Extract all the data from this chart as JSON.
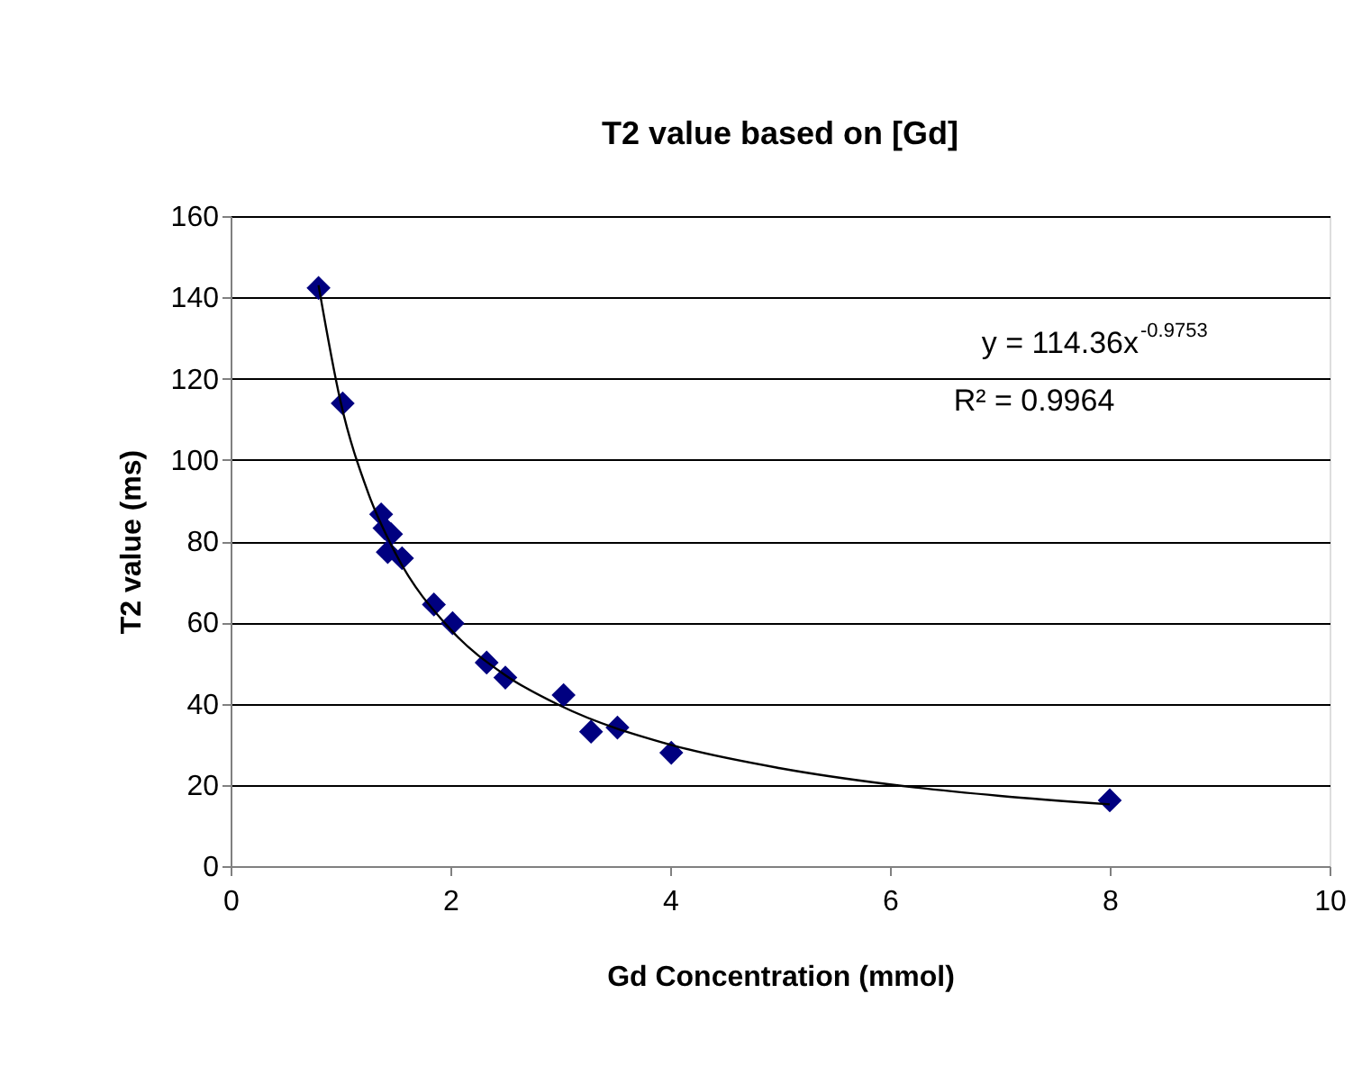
{
  "chart_data": {
    "type": "scatter",
    "title": "T2 value based on [Gd]",
    "xlabel": "Gd Concentration (mmol)",
    "ylabel": "T2 value (ms)",
    "xlim": [
      0,
      10
    ],
    "xticks": [
      0,
      2,
      4,
      6,
      8,
      10
    ],
    "ylim": [
      0,
      160
    ],
    "yticks": [
      0,
      20,
      40,
      60,
      80,
      100,
      120,
      140,
      160
    ],
    "grid": "y",
    "marker": "diamond",
    "series": [
      {
        "color": "#000080",
        "x": [
          0.8,
          1.02,
          1.37,
          1.4,
          1.46,
          1.43,
          1.56,
          1.85,
          2.02,
          2.33,
          2.5,
          3.03,
          3.28,
          3.52,
          4.01,
          8.0
        ],
        "values": [
          142.3,
          113.9,
          86.6,
          83.2,
          81.7,
          77.3,
          75.8,
          64.4,
          59.8,
          50.1,
          46.4,
          42.1,
          33.1,
          34.1,
          27.9,
          16.2
        ]
      },
      {
        "type": "line",
        "color": "#000000",
        "marker": "none",
        "line_style": "solid",
        "x": [
          0.8,
          1.0,
          1.25,
          1.5,
          2.0,
          2.5,
          3.0,
          4.0,
          5.0,
          6.0,
          7.0,
          8.0
        ],
        "values": [
          143,
          114.4,
          92,
          77,
          58.3,
          47,
          39.5,
          29.9,
          24.1,
          20.1,
          17.3,
          15.2
        ]
      }
    ],
    "annotations": [
      "y = 114.36x$^{-0.9753}$",
      "R² = 0.9964"
    ]
  }
}
